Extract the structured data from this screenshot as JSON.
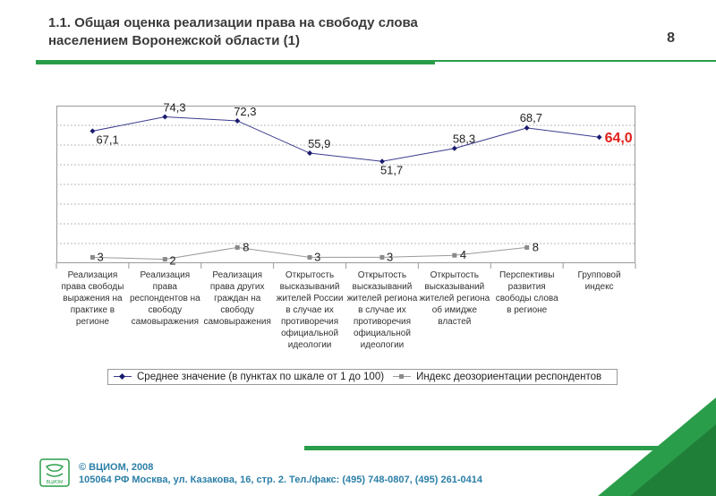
{
  "header": {
    "title_line1": "1.1. Общая оценка реализации права на свободу слова",
    "title_line2": "населением Воронежской области (1)",
    "slide_number": "8"
  },
  "chart_data": {
    "type": "line",
    "categories": [
      [
        "Реализация",
        "права свободы",
        "выражения на",
        "практике в",
        "регионе"
      ],
      [
        "Реализация",
        "права",
        "респондентов на",
        "свободу",
        "самовыражения"
      ],
      [
        "Реализация",
        "права других",
        "граждан на",
        "свободу",
        "самовыражения"
      ],
      [
        "Открытость",
        "высказываний",
        "жителей России",
        "в случае их",
        "противоречия",
        "официальной",
        "идеологии"
      ],
      [
        "Открытость",
        "высказываний",
        "жителей региона",
        "в случае их",
        "противоречия",
        "официальной",
        "идеологии"
      ],
      [
        "Открытость",
        "высказываний",
        "жителей региона",
        "об имидже",
        "властей"
      ],
      [
        "Перспективы",
        "развития",
        "свободы слова",
        "в регионе"
      ],
      [
        "Групповой",
        "индекс"
      ]
    ],
    "series": [
      {
        "name": "Среднее значение (в пунктах по шкале от 1 до 100)",
        "values": [
          67.1,
          74.3,
          72.3,
          55.9,
          51.7,
          58.3,
          68.7,
          64.0
        ],
        "labels": [
          "67,1",
          "74,3",
          "72,3",
          "55,9",
          "51,7",
          "58,3",
          "68,7",
          "64,0"
        ],
        "color": "#3b3b8e",
        "highlight_last_color": "#e0201b"
      },
      {
        "name": "Индекс деозориентации респондентов",
        "values": [
          3,
          2,
          8,
          3,
          3,
          4,
          8,
          null
        ],
        "labels": [
          "3",
          "2",
          "8",
          "3",
          "3",
          "4",
          "8",
          ""
        ],
        "color": "#9a9a9a"
      }
    ],
    "ylim": [
      0,
      80
    ],
    "grid": true,
    "legend_position": "bottom"
  },
  "footer": {
    "copyright": "© ВЦИОМ, 2008",
    "address": "105064 РФ Москва, ул. Казакова, 16, стр. 2.  Тел./факс: (495) 748-0807, (495) 261-0414",
    "logo_text": "ВЦИОМ"
  },
  "colors": {
    "accent_green": "#2a9d4a",
    "footer_blue": "#2b7fa8"
  }
}
